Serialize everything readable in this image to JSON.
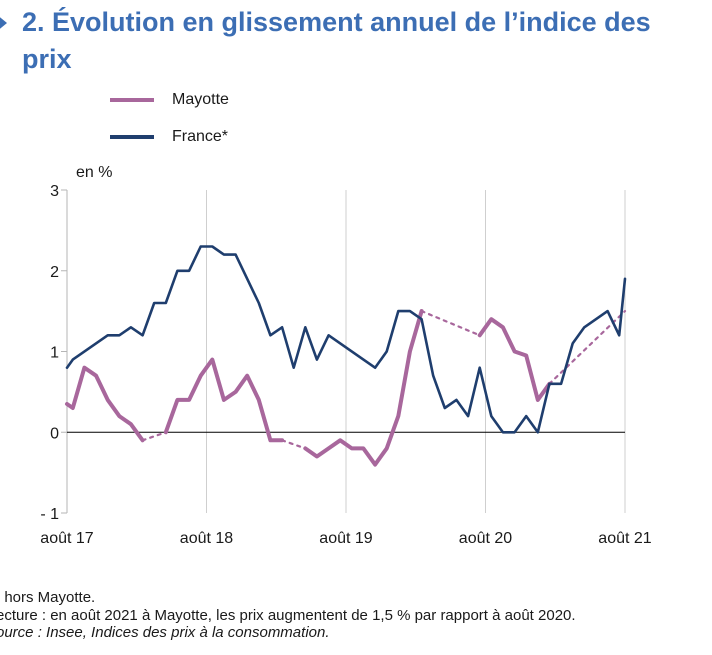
{
  "title": "2. Évolution en glissement annuel de l’indice des prix",
  "colors": {
    "title": "#3c6eb4",
    "mayotte": "#a8679c",
    "france": "#1f3e6e",
    "grid": "#cfcfcf"
  },
  "chart_data": {
    "type": "line",
    "title": "2. Évolution en glissement annuel de l’indice des prix",
    "ylabel": "en %",
    "xlabel": "",
    "ylim": [
      -1,
      3
    ],
    "yticks": [
      3,
      2,
      1,
      0,
      -1
    ],
    "ytick_labels": [
      "3",
      "2",
      "1",
      "0",
      "- 1"
    ],
    "xlim": [
      0,
      48
    ],
    "xticks": [
      {
        "x": 0,
        "label": "août 17"
      },
      {
        "x": 12,
        "label": "août 18"
      },
      {
        "x": 24,
        "label": "août 19"
      },
      {
        "x": 36,
        "label": "août 20"
      },
      {
        "x": 48,
        "label": "août 21"
      }
    ],
    "grid": "vertical",
    "legend": "top-left",
    "series": [
      {
        "name": "Mayotte",
        "color": "#a8679c",
        "segments": [
          {
            "style": "solid",
            "points": [
              [
                0,
                0.35
              ],
              [
                0.5,
                0.3
              ],
              [
                1.5,
                0.8
              ],
              [
                2.5,
                0.7
              ],
              [
                3.5,
                0.4
              ],
              [
                4.5,
                0.2
              ],
              [
                5.5,
                0.1
              ],
              [
                6.5,
                -0.1
              ]
            ]
          },
          {
            "style": "dotted",
            "points": [
              [
                6.5,
                -0.1
              ],
              [
                8.5,
                0.0
              ]
            ]
          },
          {
            "style": "solid",
            "points": [
              [
                8.5,
                0.0
              ],
              [
                9.5,
                0.4
              ],
              [
                10.5,
                0.4
              ],
              [
                11.5,
                0.7
              ],
              [
                12.5,
                0.9
              ],
              [
                13.5,
                0.4
              ],
              [
                14.5,
                0.5
              ],
              [
                15.5,
                0.7
              ],
              [
                16.5,
                0.4
              ],
              [
                17.5,
                -0.1
              ],
              [
                18.5,
                -0.1
              ]
            ]
          },
          {
            "style": "dotted",
            "points": [
              [
                18.5,
                -0.1
              ],
              [
                20.5,
                -0.2
              ]
            ]
          },
          {
            "style": "solid",
            "points": [
              [
                20.5,
                -0.2
              ],
              [
                21.5,
                -0.3
              ],
              [
                22.5,
                -0.2
              ],
              [
                23.5,
                -0.1
              ],
              [
                24.5,
                -0.2
              ],
              [
                25.5,
                -0.2
              ],
              [
                26.5,
                -0.4
              ],
              [
                27.5,
                -0.2
              ],
              [
                28.5,
                0.2
              ],
              [
                29.5,
                1.0
              ],
              [
                30.5,
                1.5
              ]
            ]
          },
          {
            "style": "dotted",
            "points": [
              [
                30.5,
                1.5
              ],
              [
                35.5,
                1.2
              ]
            ]
          },
          {
            "style": "solid",
            "points": [
              [
                35.5,
                1.2
              ],
              [
                36.5,
                1.4
              ],
              [
                37.5,
                1.3
              ],
              [
                38.5,
                1.0
              ],
              [
                39.5,
                0.95
              ],
              [
                40.5,
                0.4
              ],
              [
                41.5,
                0.6
              ]
            ]
          },
          {
            "style": "dotted",
            "points": [
              [
                41.5,
                0.6
              ],
              [
                48,
                1.5
              ]
            ]
          }
        ]
      },
      {
        "name": "France*",
        "color": "#1f3e6e",
        "segments": [
          {
            "style": "solid",
            "points": [
              [
                0,
                0.8
              ],
              [
                0.5,
                0.9
              ],
              [
                3.5,
                1.2
              ],
              [
                4.5,
                1.2
              ],
              [
                5.5,
                1.3
              ],
              [
                6.5,
                1.2
              ],
              [
                7.5,
                1.6
              ],
              [
                8.5,
                1.6
              ],
              [
                9.5,
                2.0
              ],
              [
                10.5,
                2.0
              ],
              [
                11.5,
                2.3
              ],
              [
                12.5,
                2.3
              ],
              [
                13.5,
                2.2
              ],
              [
                14.5,
                2.2
              ],
              [
                16.5,
                1.6
              ],
              [
                17.5,
                1.2
              ],
              [
                18.5,
                1.3
              ],
              [
                19.5,
                0.8
              ],
              [
                20.5,
                1.3
              ],
              [
                21.5,
                0.9
              ],
              [
                22.5,
                1.2
              ],
              [
                25.5,
                0.9
              ],
              [
                26.5,
                0.8
              ],
              [
                27.5,
                1.0
              ],
              [
                28.5,
                1.5
              ],
              [
                29.5,
                1.5
              ],
              [
                30.5,
                1.4
              ],
              [
                31.5,
                0.7
              ],
              [
                32.5,
                0.3
              ],
              [
                33.5,
                0.4
              ],
              [
                34.5,
                0.2
              ],
              [
                35.5,
                0.8
              ],
              [
                36.5,
                0.2
              ],
              [
                37.5,
                0.0
              ],
              [
                38.5,
                0.0
              ],
              [
                39.5,
                0.2
              ],
              [
                40.5,
                0.0
              ],
              [
                41.5,
                0.6
              ],
              [
                42.5,
                0.6
              ],
              [
                43.5,
                1.1
              ],
              [
                44.5,
                1.3
              ],
              [
                46.5,
                1.5
              ],
              [
                47.5,
                1.2
              ],
              [
                48,
                1.9
              ]
            ]
          }
        ]
      }
    ]
  },
  "footer": {
    "note": ": hors Mayotte.",
    "lecture": "ecture : en août 2021 à Mayotte, les prix augmentent de 1,5 % par rapport à août 2020.",
    "source": "ource : Insee, Indices des prix à la consommation."
  }
}
